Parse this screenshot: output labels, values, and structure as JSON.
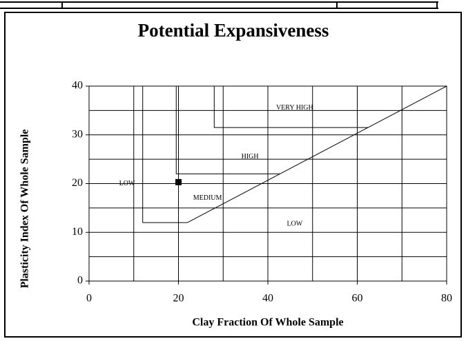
{
  "chart_data": {
    "type": "scatter",
    "title": "Potential Expansiveness",
    "x_label": "Clay Fraction Of Whole Sample",
    "y_label": "Plasticity Index Of Whole Sample",
    "xlim": [
      0,
      80
    ],
    "ylim": [
      0,
      40
    ],
    "xticks": [
      0,
      20,
      40,
      60,
      80
    ],
    "yticks": [
      0,
      10,
      20,
      30,
      40
    ],
    "xgrid": [
      10,
      20,
      30,
      40,
      50,
      60,
      70
    ],
    "ygrid": [
      5,
      10,
      15,
      20,
      25,
      30,
      35
    ],
    "lines": [
      {
        "x": [
          22,
          80
        ],
        "y": [
          12,
          40
        ],
        "color": "#000000"
      },
      {
        "x": [
          12,
          12,
          22
        ],
        "y": [
          40,
          12,
          12
        ],
        "color": "#000000"
      },
      {
        "x": [
          19.5,
          19.5,
          42.7
        ],
        "y": [
          40,
          22,
          22
        ],
        "color": "#000000"
      },
      {
        "x": [
          28,
          28,
          62.4
        ],
        "y": [
          40,
          31.5,
          31.5
        ],
        "color": "#000000"
      }
    ],
    "points": {
      "x": [
        20
      ],
      "y": [
        20.3
      ],
      "color": "#000000",
      "marker": "square"
    },
    "annotations": [
      {
        "text": "LOW",
        "x": 8.5,
        "y": 20
      },
      {
        "text": "MEDIUM",
        "x": 26.5,
        "y": 17
      },
      {
        "text": "HIGH",
        "x": 36,
        "y": 25.5
      },
      {
        "text": "VERY HIGH",
        "x": 46,
        "y": 35.5
      },
      {
        "text": "LOW",
        "x": 46,
        "y": 11.7
      }
    ]
  }
}
